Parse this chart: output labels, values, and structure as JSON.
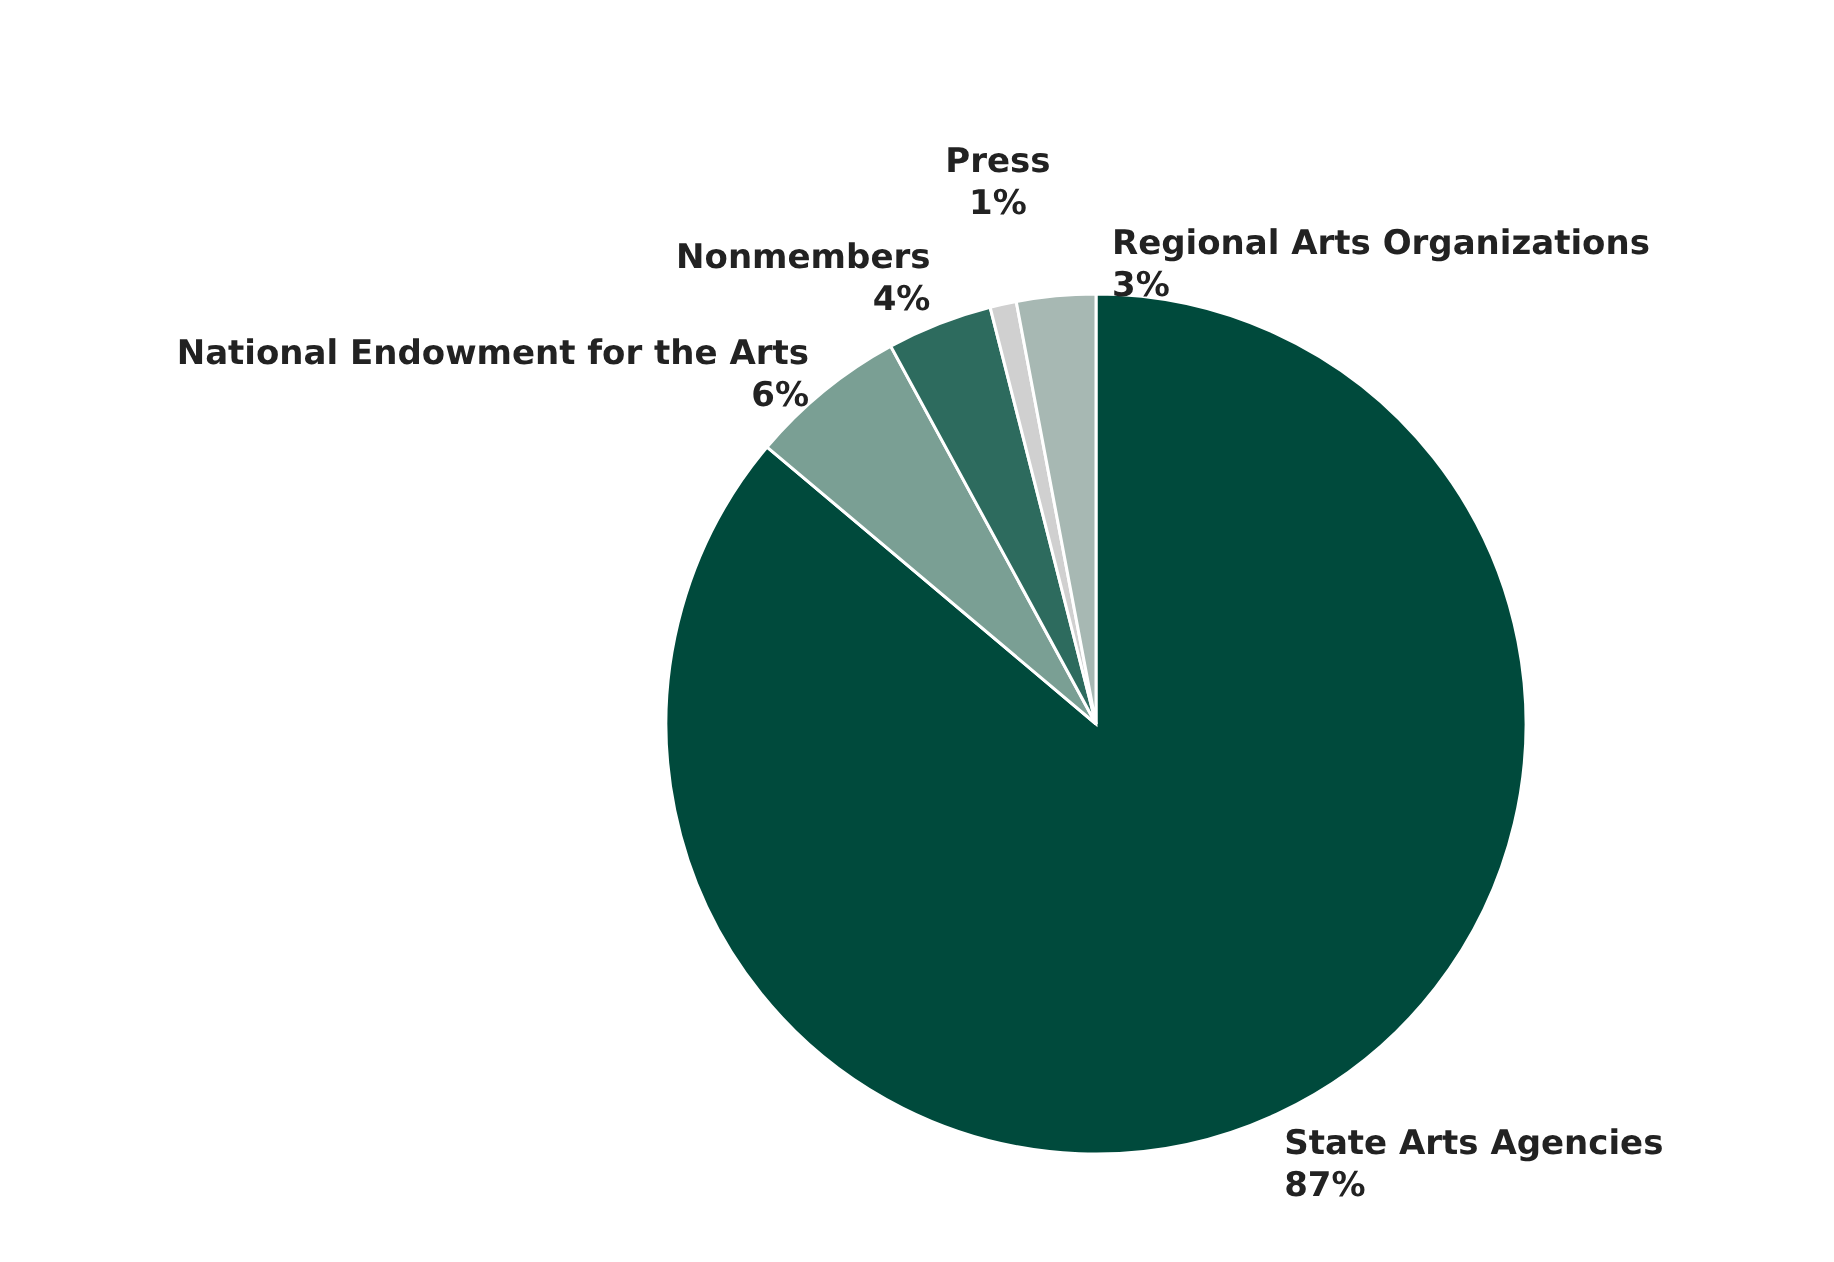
{
  "chart_data": {
    "type": "pie",
    "categories": [
      "State Arts Agencies",
      "National Endowment for the Arts",
      "Nonmembers",
      "Press",
      "Regional Arts Organizations"
    ],
    "values": [
      87,
      6,
      4,
      1,
      3
    ],
    "colors": [
      "#004a3c",
      "#7a9f94",
      "#2d6b5e",
      "#d0d0d0",
      "#a7b8b3"
    ],
    "value_labels": [
      "87%",
      "6%",
      "4%",
      "1%",
      "3%"
    ]
  }
}
